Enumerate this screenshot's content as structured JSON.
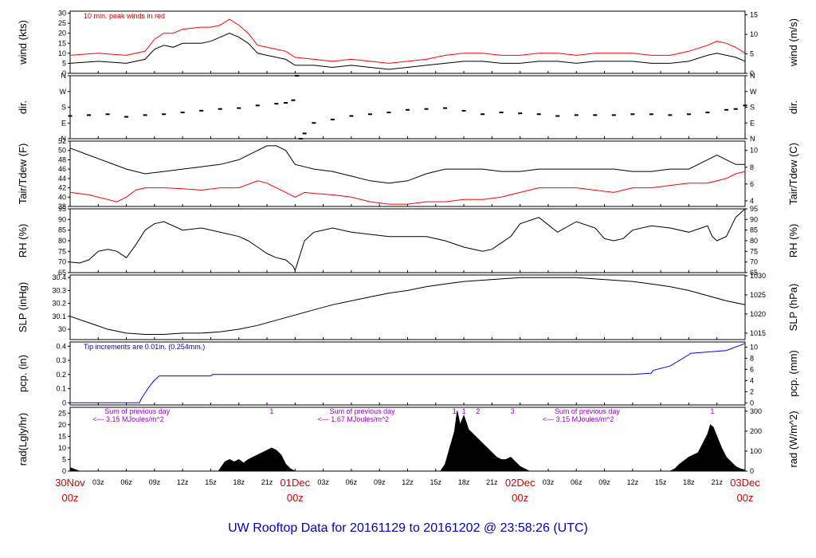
{
  "title": "UW Rooftop Data for 20161129  to  20161202 @ 23:58:26  (UTC)",
  "x_day_labels": [
    {
      "t": 0,
      "day": "30Nov",
      "hr": "00z"
    },
    {
      "t": 24,
      "day": "01Dec",
      "hr": "00z"
    },
    {
      "t": 48,
      "day": "02Dec",
      "hr": "00z"
    },
    {
      "t": 72,
      "day": "03Dec",
      "hr": "00z"
    }
  ],
  "x_hour_labels": [
    "03z",
    "06z",
    "09z",
    "12z",
    "15z",
    "18z",
    "21z"
  ],
  "chart_data": [
    {
      "type": "line",
      "id": "wind",
      "ylabel_left": "wind (kts)",
      "ylabel_right": "wind (m/s)",
      "ylim": [
        0,
        31
      ],
      "yticks": [
        0,
        5,
        10,
        15,
        20,
        25,
        30
      ],
      "right_ylim": [
        0,
        15.95
      ],
      "right_yticks": [
        0,
        5,
        10,
        15
      ],
      "annotation": "10 min. peak winds in red",
      "series": [
        {
          "name": "",
          "color": "#000000",
          "x": [
            0,
            3,
            6,
            8,
            9,
            10,
            11,
            12,
            14,
            15,
            16,
            17,
            18,
            19,
            20,
            21,
            22,
            23,
            24,
            26,
            28,
            30,
            32,
            34,
            36,
            38,
            40,
            42,
            44,
            46,
            48,
            50,
            52,
            54,
            56,
            58,
            60,
            62,
            64,
            66,
            68,
            69,
            70,
            71,
            72
          ],
          "y": [
            5,
            6,
            5,
            7,
            12,
            14,
            13,
            15,
            15,
            16,
            18,
            20,
            18,
            15,
            10,
            9,
            8,
            7,
            4,
            4,
            3,
            4,
            3,
            2,
            3,
            4,
            5,
            6,
            6,
            5,
            5,
            6,
            6,
            5,
            6,
            6,
            6,
            5,
            5,
            6,
            9,
            10,
            9,
            8,
            6
          ]
        },
        {
          "name": "",
          "color": "#ff0000",
          "x": [
            0,
            3,
            6,
            8,
            9,
            10,
            11,
            12,
            14,
            15,
            16,
            17,
            18,
            19,
            20,
            21,
            22,
            23,
            24,
            26,
            28,
            30,
            32,
            34,
            36,
            38,
            40,
            42,
            44,
            46,
            48,
            50,
            52,
            54,
            56,
            58,
            60,
            62,
            64,
            66,
            68,
            69,
            70,
            71,
            72
          ],
          "y": [
            9,
            10,
            9,
            11,
            17,
            20,
            20,
            22,
            23,
            23,
            24,
            27,
            24,
            20,
            14,
            13,
            12,
            11,
            8,
            7,
            6,
            7,
            6,
            5,
            6,
            7,
            9,
            10,
            10,
            9,
            9,
            10,
            10,
            9,
            10,
            10,
            10,
            9,
            9,
            11,
            14,
            16,
            15,
            13,
            10
          ]
        }
      ]
    },
    {
      "type": "scatter",
      "id": "dir",
      "ylabel_left": "dir.",
      "ylabel_right": "dir.",
      "ylim": [
        0,
        360
      ],
      "ytick_labels": [
        "N",
        "E",
        "S",
        "W",
        "N"
      ],
      "yticks": [
        0,
        90,
        180,
        270,
        360
      ],
      "series": [
        {
          "name": "",
          "color": "#000000",
          "x": [
            0,
            2,
            4,
            6,
            8,
            10,
            12,
            14,
            16,
            18,
            20,
            22,
            23,
            23.8,
            24.2,
            24.6,
            25,
            26,
            28,
            30,
            32,
            34,
            36,
            38,
            40,
            42,
            44,
            46,
            48,
            50,
            52,
            54,
            56,
            58,
            60,
            62,
            64,
            66,
            68,
            70,
            71,
            72
          ],
          "y": [
            130,
            135,
            140,
            125,
            135,
            140,
            150,
            160,
            170,
            175,
            190,
            200,
            205,
            220,
            360,
            0,
            30,
            90,
            110,
            130,
            140,
            150,
            165,
            170,
            175,
            160,
            140,
            150,
            145,
            140,
            130,
            135,
            135,
            135,
            140,
            140,
            135,
            140,
            150,
            165,
            170,
            190
          ]
        }
      ]
    },
    {
      "type": "line",
      "id": "temp",
      "ylabel_left": "Tair/Tdew (F)",
      "ylabel_right": "Tair/Tdew (C)",
      "ylim": [
        38,
        52
      ],
      "yticks": [
        38,
        40,
        42,
        44,
        46,
        48,
        50,
        52
      ],
      "right_ylim": [
        3.33,
        11.11
      ],
      "right_yticks": [
        4,
        6,
        8,
        10
      ],
      "series": [
        {
          "name": "",
          "color": "#000000",
          "x": [
            0,
            2,
            4,
            6,
            8,
            10,
            12,
            14,
            16,
            18,
            20,
            21,
            22,
            23,
            24,
            25,
            26,
            28,
            30,
            32,
            34,
            36,
            38,
            40,
            42,
            44,
            46,
            48,
            50,
            52,
            54,
            56,
            58,
            60,
            62,
            64,
            66,
            68,
            69,
            70,
            71,
            72
          ],
          "y": [
            50.5,
            49,
            47.5,
            46,
            45,
            45.5,
            46,
            46.5,
            47,
            48,
            50,
            51,
            51,
            50,
            47,
            46.5,
            46,
            45.5,
            44.5,
            43.5,
            43,
            43.5,
            45,
            46,
            46,
            46,
            45.5,
            45.5,
            46,
            46,
            46,
            46,
            46,
            45.5,
            45.5,
            46,
            46,
            48,
            49,
            48,
            47,
            47
          ]
        },
        {
          "name": "",
          "color": "#ff0000",
          "x": [
            0,
            2,
            4,
            5,
            6,
            7,
            8,
            10,
            12,
            14,
            16,
            18,
            20,
            21,
            22,
            23,
            24,
            25,
            26,
            28,
            30,
            32,
            34,
            36,
            38,
            40,
            42,
            44,
            46,
            48,
            50,
            52,
            54,
            56,
            58,
            60,
            62,
            64,
            66,
            68,
            70,
            71,
            72
          ],
          "y": [
            41,
            40.5,
            39.5,
            39,
            40,
            41.5,
            42,
            42,
            41.8,
            41.5,
            42,
            42,
            43.5,
            43,
            42,
            41,
            40,
            41,
            40.8,
            40.5,
            40,
            39,
            38.5,
            38.5,
            39,
            39,
            39.5,
            39.5,
            40,
            41,
            42,
            42,
            42,
            41.5,
            41,
            42,
            42,
            42.5,
            43,
            43,
            44,
            45,
            45.5
          ]
        }
      ]
    },
    {
      "type": "line",
      "id": "rh",
      "ylabel_left": "RH (%)",
      "ylabel_right": "RH (%)",
      "ylim": [
        65,
        95
      ],
      "yticks": [
        65,
        70,
        75,
        80,
        85,
        90,
        95
      ],
      "right_ylim": [
        65,
        95
      ],
      "right_yticks": [
        65,
        70,
        75,
        80,
        85,
        90,
        95
      ],
      "series": [
        {
          "name": "",
          "color": "#000000",
          "x": [
            0,
            1,
            2,
            3,
            4,
            5,
            6,
            7,
            8,
            9,
            10,
            12,
            14,
            16,
            18,
            19,
            20,
            21,
            22,
            23,
            23.8,
            24,
            24.5,
            25,
            26,
            27,
            28,
            30,
            32,
            34,
            36,
            38,
            40,
            42,
            44,
            45,
            46,
            47,
            48,
            50,
            52,
            54,
            56,
            57,
            58,
            59,
            60,
            62,
            64,
            66,
            68,
            68.5,
            69,
            70,
            71,
            72
          ],
          "y": [
            70,
            69.5,
            71,
            75,
            76,
            75,
            72,
            78,
            85,
            88,
            89,
            85,
            86,
            84,
            82,
            80,
            77,
            74,
            72,
            71,
            68,
            66,
            73,
            80,
            84,
            85,
            86,
            84,
            83,
            82,
            82,
            82,
            80,
            77,
            75,
            76,
            79,
            82,
            88,
            91,
            84,
            89,
            86,
            81,
            80,
            81,
            85,
            87,
            86,
            84,
            87,
            82,
            80,
            82,
            91,
            95
          ]
        }
      ]
    },
    {
      "type": "line",
      "id": "slp",
      "ylabel_left": "SLP (inHg)",
      "ylabel_right": "SLP (hPa)",
      "ylim": [
        29.92,
        30.42
      ],
      "yticks": [
        30.0,
        30.1,
        30.2,
        30.3,
        30.4
      ],
      "right_ylim": [
        1013.3,
        1030.2
      ],
      "right_yticks": [
        1015,
        1020,
        1025,
        1030
      ],
      "series": [
        {
          "name": "",
          "color": "#000000",
          "x": [
            0,
            2,
            4,
            6,
            8,
            10,
            12,
            14,
            16,
            18,
            20,
            22,
            24,
            26,
            28,
            30,
            32,
            34,
            36,
            38,
            40,
            42,
            44,
            46,
            48,
            50,
            52,
            54,
            56,
            58,
            60,
            62,
            64,
            66,
            68,
            70,
            72
          ],
          "y": [
            30.1,
            30.05,
            30.0,
            29.97,
            29.96,
            29.96,
            29.97,
            29.97,
            29.98,
            30.0,
            30.03,
            30.07,
            30.11,
            30.15,
            30.19,
            30.22,
            30.25,
            30.28,
            30.3,
            30.33,
            30.35,
            30.37,
            30.38,
            30.39,
            30.4,
            30.4,
            30.4,
            30.4,
            30.39,
            30.38,
            30.37,
            30.35,
            30.33,
            30.3,
            30.26,
            30.22,
            30.19
          ]
        }
      ]
    },
    {
      "type": "line",
      "id": "pcp",
      "ylabel_left": "pcp. (in)",
      "ylabel_right": "pcp. (mm)",
      "ylim": [
        -0.015,
        0.43
      ],
      "yticks": [
        0,
        0.1,
        0.2,
        0.3,
        0.4
      ],
      "right_ylim": [
        -0.38,
        10.92
      ],
      "right_yticks": [
        0,
        2,
        4,
        6,
        8,
        10
      ],
      "annotation": "Tip increments are 0.01in. (0.254mm.)",
      "series": [
        {
          "name": "",
          "color": "#0000ff",
          "x": [
            0,
            7.4,
            7.6,
            8,
            8.5,
            9,
            9.5,
            10,
            15,
            15.2,
            60,
            62,
            62.2,
            64,
            66,
            66.2,
            70,
            72
          ],
          "y": [
            0,
            0,
            0.03,
            0.07,
            0.12,
            0.16,
            0.19,
            0.19,
            0.19,
            0.2,
            0.2,
            0.21,
            0.23,
            0.26,
            0.34,
            0.35,
            0.37,
            0.42
          ]
        }
      ]
    },
    {
      "type": "area",
      "id": "rad",
      "ylabel_left": "rad(Lgly/hr)",
      "ylabel_right": "rad (W/m^2)",
      "ylim": [
        0,
        27.5
      ],
      "yticks": [
        0,
        5,
        10,
        15,
        20,
        25
      ],
      "right_ylim": [
        0,
        319
      ],
      "right_yticks": [
        0,
        100,
        200,
        300
      ],
      "annotations": [
        {
          "t": 7.5,
          "line1": "Sum of previous day",
          "line2": "<--- 3.15 MJoules/m^2"
        },
        {
          "t": 31.5,
          "line1": "Sum of previous day",
          "line2": "<--- 1.67 MJoules/m^2"
        },
        {
          "t": 55.5,
          "line1": "Sum of previous day",
          "line2": "<--- 3.15 MJoules/m^2"
        }
      ],
      "markers": [
        {
          "t": 21.5,
          "label": "1"
        },
        {
          "t": 41.0,
          "label": "1"
        },
        {
          "t": 42.0,
          "label": "1"
        },
        {
          "t": 43.5,
          "label": "2"
        },
        {
          "t": 47.2,
          "label": "3"
        },
        {
          "t": 68.5,
          "label": "1"
        }
      ],
      "series": [
        {
          "name": "",
          "color": "#000000",
          "x": [
            0,
            1,
            15.8,
            16,
            16.5,
            17,
            17.5,
            18,
            18.5,
            19,
            19.5,
            20,
            20.5,
            21,
            21.5,
            22,
            22.5,
            23,
            23.5,
            24,
            39.5,
            40,
            40.5,
            41,
            41.3,
            41.6,
            42,
            42.5,
            43,
            43.5,
            44,
            44.5,
            45,
            45.5,
            46,
            46.5,
            47,
            47.5,
            48,
            48.5,
            49,
            64,
            64.5,
            65,
            66,
            67,
            67.5,
            68,
            68.3,
            68.6,
            69,
            69.5,
            70,
            70.5,
            71,
            71.5,
            72
          ],
          "y": [
            1.5,
            0,
            0,
            1,
            4,
            5,
            4,
            5,
            3.5,
            5,
            6,
            7,
            8,
            9,
            10,
            9,
            7,
            3,
            1,
            0,
            0,
            3,
            10,
            17,
            26,
            20,
            24,
            18,
            16,
            14,
            12,
            10,
            8,
            6,
            5,
            5,
            6,
            4,
            2,
            1,
            0,
            0,
            1,
            3,
            6,
            8,
            12,
            16,
            20,
            19,
            15,
            10,
            6,
            4,
            2,
            1,
            0.5
          ]
        }
      ]
    }
  ]
}
